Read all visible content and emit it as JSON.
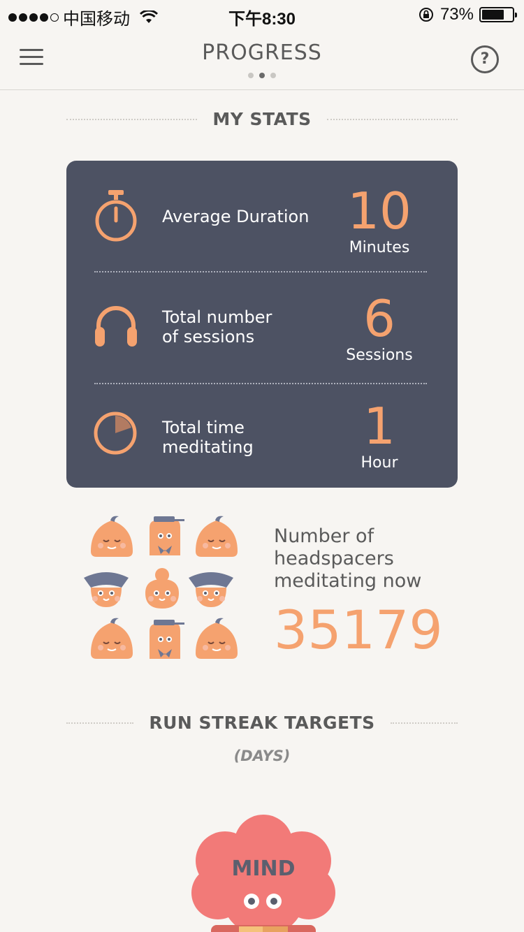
{
  "status_bar": {
    "carrier": "中国移动",
    "time": "下午8:30",
    "battery": "73%"
  },
  "nav": {
    "title": "PROGRESS",
    "help_label": "?"
  },
  "stats": {
    "section_title": "MY STATS",
    "items": [
      {
        "label_line1": "Average Duration",
        "label_line2": "",
        "value": "10",
        "unit": "Minutes",
        "icon": "stopwatch-icon"
      },
      {
        "label_line1": "Total number",
        "label_line2": "of sessions",
        "value": "6",
        "unit": "Sessions",
        "icon": "headphones-icon"
      },
      {
        "label_line1": "Total time",
        "label_line2": "meditating",
        "value": "1",
        "unit": "Hour",
        "icon": "pie-clock-icon"
      }
    ]
  },
  "headspacers": {
    "line1": "Number of",
    "line2": "headspacers",
    "line3": "meditating now",
    "count": "35179"
  },
  "run_streak": {
    "section_title": "RUN STREAK TARGETS",
    "subtitle": "(DAYS)",
    "character_label": "MIND"
  },
  "colors": {
    "accent": "#f5a26f",
    "card": "#4d5263",
    "background": "#f7f5f2",
    "mind": "#f27a78"
  }
}
